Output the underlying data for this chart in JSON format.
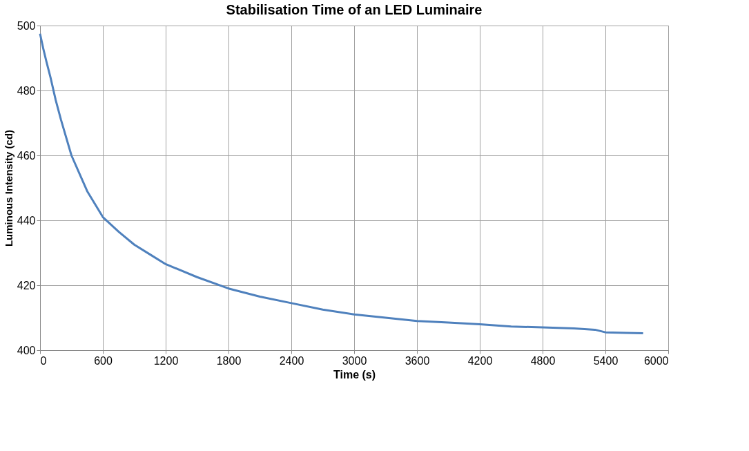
{
  "chart_data": {
    "type": "line",
    "title": "Stabilisation Time of an LED Luminaire",
    "xlabel": "Time (s)",
    "ylabel": "Luminous Intensity (cd)",
    "x": [
      0,
      30,
      60,
      100,
      150,
      200,
      300,
      450,
      600,
      750,
      900,
      1050,
      1200,
      1500,
      1800,
      2100,
      2400,
      2700,
      3000,
      3300,
      3600,
      3900,
      4200,
      4500,
      4800,
      5100,
      5300,
      5400,
      5600,
      5760
    ],
    "series": [
      {
        "color": "#4f81bd",
        "values": [
          497.5,
          493,
          489,
          484,
          477,
          471,
          460,
          449,
          441,
          436.5,
          432.5,
          429.5,
          426.5,
          422.5,
          419,
          416.5,
          414.5,
          412.5,
          411,
          410,
          409,
          408.5,
          408,
          407.3,
          407,
          406.7,
          406.3,
          405.5,
          405.3,
          405.2
        ]
      }
    ],
    "xlim": [
      0,
      6000
    ],
    "xticks": [
      0,
      600,
      1200,
      1800,
      2400,
      3000,
      3600,
      4200,
      4800,
      5400,
      6000
    ],
    "ylim": [
      400,
      500
    ],
    "yticks": [
      400,
      420,
      440,
      460,
      480,
      500
    ],
    "grid": true,
    "marker": "none",
    "line_style": "solid",
    "legend": false
  }
}
